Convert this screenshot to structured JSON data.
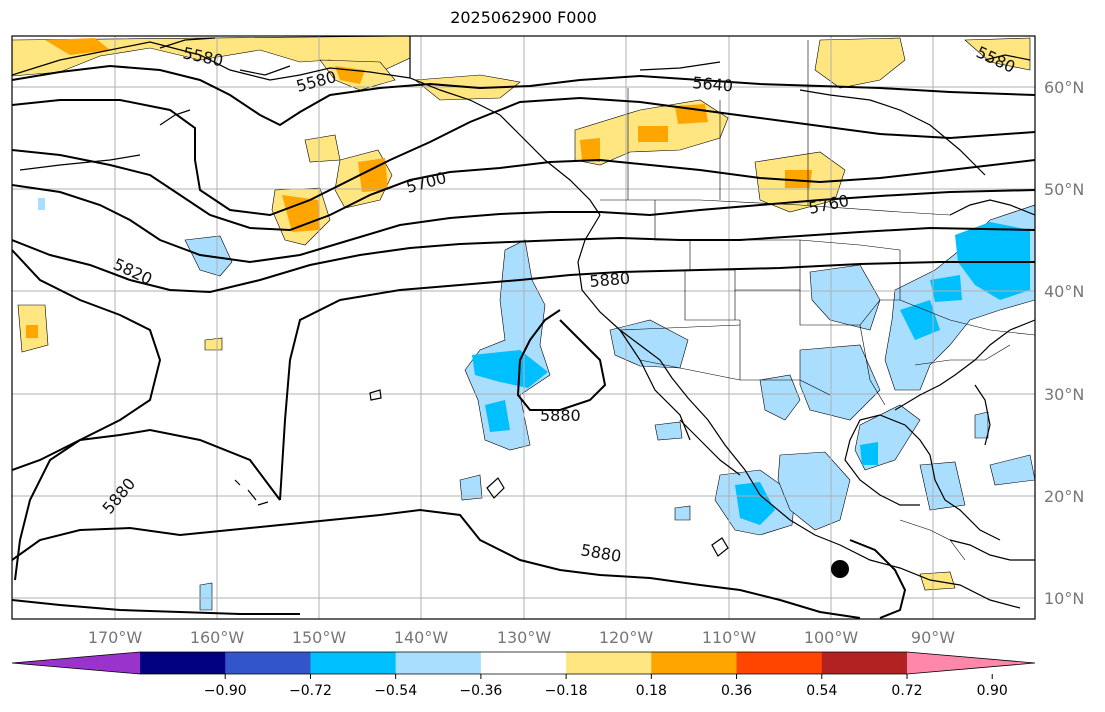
{
  "title": "2025062900 F000",
  "longitude_labels": [
    "170°W",
    "160°W",
    "150°W",
    "140°W",
    "130°W",
    "120°W",
    "110°W",
    "100°W",
    "90°W"
  ],
  "latitude_labels": [
    "60°N",
    "50°N",
    "40°N",
    "30°N",
    "20°N",
    "10°N"
  ],
  "contour_labels": [
    "5580",
    "5580",
    "5640",
    "5700",
    "5760",
    "5820",
    "5880",
    "5880",
    "5880",
    "5880",
    "5580"
  ],
  "colorbar": {
    "colors": [
      "#9933cc",
      "#000080",
      "#3355cc",
      "#00bfff",
      "#aadeff",
      "#ffffff",
      "#ffe680",
      "#ffa500",
      "#ff4500",
      "#b22222",
      "#ff88aa"
    ],
    "tick_labels": [
      "−0.90",
      "−0.72",
      "−0.54",
      "−0.36",
      "−0.18",
      "0.18",
      "0.36",
      "0.54",
      "0.72",
      "0.90"
    ]
  },
  "marker": "storm-center-dot",
  "fill_colors": {
    "light_yellow": "#ffe680",
    "orange": "#ffa500",
    "light_blue": "#aadeff",
    "cyan": "#00bfff"
  }
}
